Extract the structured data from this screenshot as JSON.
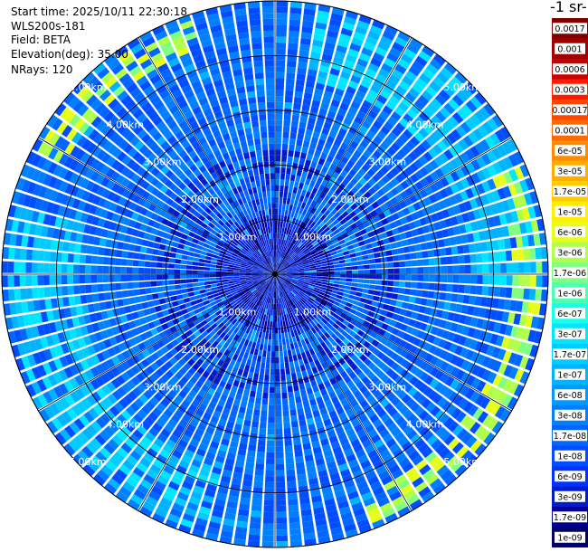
{
  "info": {
    "start_time": "Start time: 2025/10/11 22:30:18",
    "instrument": "WLS200s-181",
    "field": "Field: BETA",
    "elevation": "Elevation(deg): 35.00",
    "nrays": "NRays: 120"
  },
  "colorbar": {
    "title": "-1 sr-",
    "labels": [
      "0.0017",
      "0.001",
      "0.0006",
      "0.0003",
      "0.00017",
      "0.0001",
      "6e-05",
      "3e-05",
      "1.7e-05",
      "1e-05",
      "6e-06",
      "3e-06",
      "1.7e-06",
      "1e-06",
      "6e-07",
      "3e-07",
      "1.7e-07",
      "1e-07",
      "6e-08",
      "3e-08",
      "1.7e-08",
      "1e-08",
      "6e-09",
      "3e-09",
      "1.7e-09",
      "1e-09"
    ],
    "colors": [
      "#800000",
      "#a00000",
      "#c80000",
      "#ff1a00",
      "#ff4500",
      "#ff6a00",
      "#ff8c00",
      "#ffae00",
      "#ffcc00",
      "#ffee00",
      "#e6ff1a",
      "#b0ff4a",
      "#80ff80",
      "#4dffb3",
      "#1affe6",
      "#00e6ff",
      "#00ccff",
      "#00b3ff",
      "#0099ff",
      "#0080ff",
      "#0066ff",
      "#004dff",
      "#0033ff",
      "#001acc",
      "#000099",
      "#000066"
    ]
  },
  "chart_data": {
    "type": "heatmap",
    "projection": "polar",
    "n_rays": 120,
    "range_rings_km": [
      1,
      2,
      3,
      4,
      5
    ],
    "ring_labels": [
      "1.00km",
      "2.00km",
      "3.00km",
      "4.00km",
      "5.00km"
    ],
    "color_scale": "log",
    "value_range": [
      1e-09,
      0.0017
    ]
  }
}
